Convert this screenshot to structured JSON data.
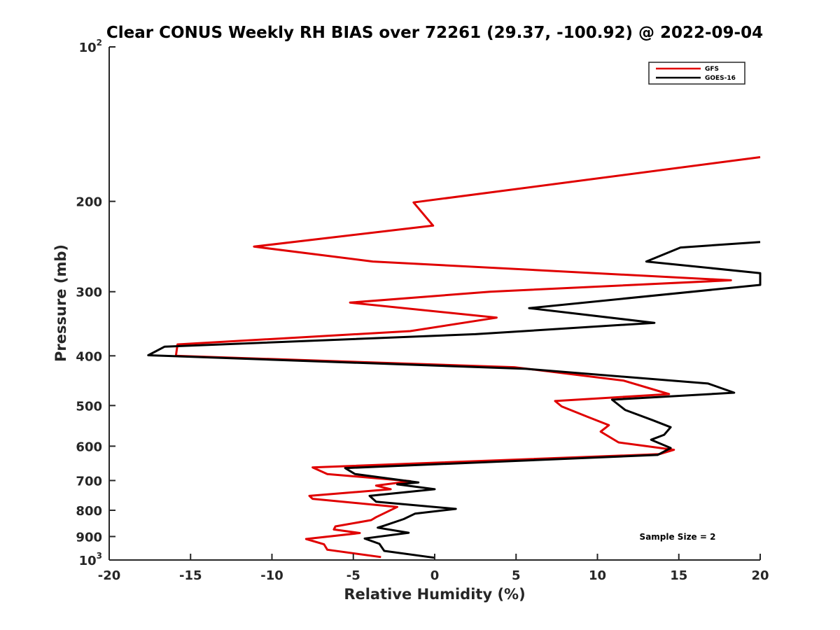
{
  "chart_data": {
    "type": "line",
    "title": "Clear CONUS Weekly RH BIAS over 72261 (29.37, -100.92) @ 2022-09-04",
    "xlabel": "Relative Humidity (%)",
    "ylabel": "Pressure (mb)",
    "xlim": [
      -20,
      20
    ],
    "ylim": [
      100,
      1000
    ],
    "y_scale": "log",
    "y_reversed": true,
    "grid": false,
    "legend_position": "top-right",
    "annotation": "Sample Size = 2",
    "x_ticks": [
      "-20",
      "-15",
      "-10",
      "-5",
      "0",
      "5",
      "10",
      "15",
      "20"
    ],
    "x_tick_values": [
      -20,
      -15,
      -10,
      -5,
      0,
      5,
      10,
      15,
      20
    ],
    "y_ticks": [
      {
        "value": 100,
        "base": "10",
        "exp": "2"
      },
      {
        "value": 200,
        "label": "200"
      },
      {
        "value": 300,
        "label": "300"
      },
      {
        "value": 400,
        "label": "400"
      },
      {
        "value": 500,
        "label": "500"
      },
      {
        "value": 600,
        "label": "600"
      },
      {
        "value": 700,
        "label": "700"
      },
      {
        "value": 800,
        "label": "800"
      },
      {
        "value": 900,
        "label": "900"
      },
      {
        "value": 1000,
        "base": "10",
        "exp": "3"
      }
    ],
    "series": [
      {
        "name": "GFS",
        "color": "#e00000",
        "points": [
          [
            20,
            164
          ],
          [
            -1.3,
            201
          ],
          [
            -0.1,
            223
          ],
          [
            -11.1,
            245
          ],
          [
            -3.8,
            262
          ],
          [
            18.2,
            285
          ],
          [
            3.4,
            300
          ],
          [
            -5.2,
            315
          ],
          [
            3.8,
            337
          ],
          [
            -1.5,
            358
          ],
          [
            -15.8,
            380
          ],
          [
            -15.9,
            400
          ],
          [
            4.9,
            421
          ],
          [
            11.6,
            447
          ],
          [
            14.4,
            475
          ],
          [
            7.4,
            490
          ],
          [
            7.8,
            502
          ],
          [
            9.4,
            526
          ],
          [
            10.7,
            546
          ],
          [
            10.2,
            562
          ],
          [
            11.3,
            590
          ],
          [
            14.7,
            610
          ],
          [
            13.8,
            622
          ],
          [
            -7.5,
            660
          ],
          [
            -6.6,
            680
          ],
          [
            -1.5,
            702
          ],
          [
            -3.6,
            716
          ],
          [
            -2.7,
            728
          ],
          [
            -7.7,
            750
          ],
          [
            -7.5,
            760
          ],
          [
            -2.3,
            788
          ],
          [
            -3.6,
            825
          ],
          [
            -3.9,
            836
          ],
          [
            -6.1,
            860
          ],
          [
            -6.2,
            872
          ],
          [
            -4.6,
            886
          ],
          [
            -7.9,
            910
          ],
          [
            -6.8,
            932
          ],
          [
            -6.6,
            955
          ],
          [
            -3.3,
            987
          ]
        ]
      },
      {
        "name": "GOES-16",
        "color": "#000000",
        "points": [
          [
            20,
            240
          ],
          [
            15.1,
            246
          ],
          [
            13.0,
            262
          ],
          [
            20,
            276
          ],
          [
            20,
            291
          ],
          [
            5.8,
            323
          ],
          [
            13.5,
            345
          ],
          [
            2.5,
            363
          ],
          [
            -16.6,
            384
          ],
          [
            -17.6,
            399
          ],
          [
            5.6,
            424
          ],
          [
            16.8,
            453
          ],
          [
            18.4,
            472
          ],
          [
            10.9,
            487
          ],
          [
            11.7,
            510
          ],
          [
            13.4,
            534
          ],
          [
            14.5,
            551
          ],
          [
            14.1,
            570
          ],
          [
            13.3,
            583
          ],
          [
            14.5,
            605
          ],
          [
            13.7,
            624
          ],
          [
            -5.5,
            662
          ],
          [
            -4.9,
            680
          ],
          [
            -1.0,
            706
          ],
          [
            -2.3,
            712
          ],
          [
            0.0,
            728
          ],
          [
            -4.0,
            750
          ],
          [
            -3.6,
            770
          ],
          [
            1.3,
            795
          ],
          [
            -1.2,
            812
          ],
          [
            -1.9,
            832
          ],
          [
            -3.1,
            857
          ],
          [
            -3.5,
            865
          ],
          [
            -1.6,
            885
          ],
          [
            -4.3,
            908
          ],
          [
            -3.4,
            930
          ],
          [
            -3.1,
            960
          ],
          [
            0.0,
            990
          ]
        ]
      }
    ]
  }
}
